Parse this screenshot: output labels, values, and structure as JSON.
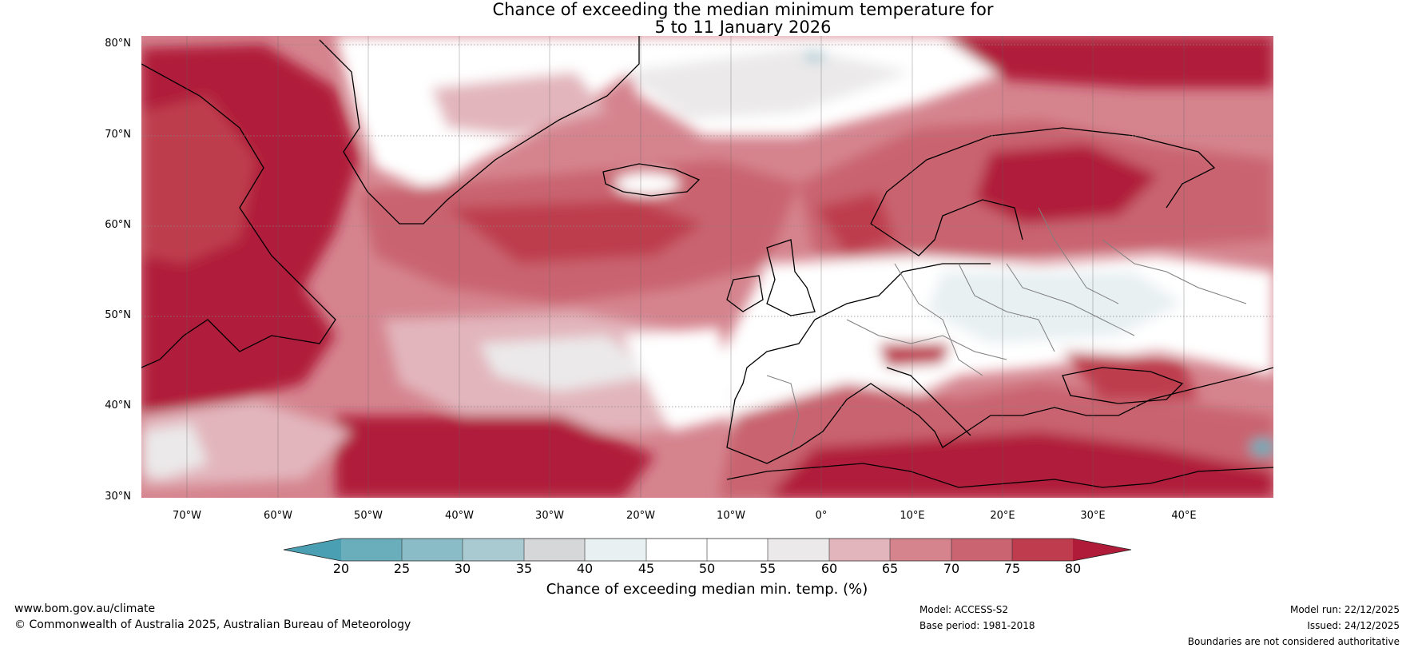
{
  "title": {
    "line1": "Chance of exceeding the median minimum temperature for",
    "line2": "5 to 11 January 2026"
  },
  "axes": {
    "lat_labels": [
      "80°N",
      "70°N",
      "60°N",
      "50°N",
      "40°N",
      "30°N"
    ],
    "lon_labels": [
      "70°W",
      "60°W",
      "50°W",
      "40°W",
      "30°W",
      "20°W",
      "10°W",
      "0°",
      "10°E",
      "20°E",
      "30°E",
      "40°E"
    ]
  },
  "colorbar": {
    "ticks": [
      "20",
      "25",
      "30",
      "35",
      "40",
      "45",
      "50",
      "55",
      "60",
      "65",
      "70",
      "75",
      "80"
    ],
    "title": "Chance of exceeding median min. temp. (%)",
    "colors": [
      "#4aa0b2",
      "#6aaebc",
      "#89bcc7",
      "#a9cad1",
      "#d6d7d9",
      "#e8f0f2",
      "#ffffff",
      "#ffffff",
      "#ebe9ea",
      "#e2b5bc",
      "#d5848e",
      "#c96470",
      "#be3c4d",
      "#b01b3a"
    ]
  },
  "footer": {
    "website": "www.bom.gov.au/climate",
    "copyright": "© Commonwealth of Australia 2025, Australian Bureau of Meteorology",
    "model": "Model: ACCESS-S2",
    "base_period": "Base period: 1981-2018",
    "model_run": "Model run: 22/12/2025",
    "issued": "Issued: 24/12/2025",
    "boundaries": "Boundaries are not considered authoritative"
  }
}
